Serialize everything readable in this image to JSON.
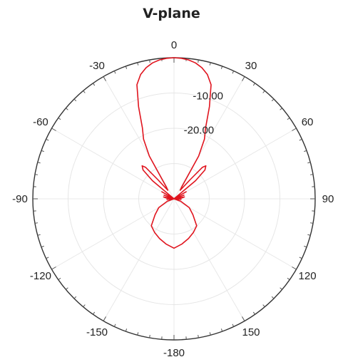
{
  "chart_data": {
    "type": "line",
    "projection": "polar",
    "title": "V-plane",
    "theta_zero": "top",
    "theta_direction": "clockwise",
    "angle_ticks": [
      0,
      30,
      60,
      90,
      120,
      150,
      -180,
      -150,
      -120,
      -90,
      -60,
      -30
    ],
    "angle_tick_labels": [
      "0",
      "30",
      "60",
      "90",
      "120",
      "150",
      "-180",
      "-150",
      "-120",
      "-90",
      "-60",
      "-30"
    ],
    "r_range_db": [
      -40,
      0
    ],
    "ring_levels_db": [
      -10,
      -20,
      -30
    ],
    "ring_labels": [
      "-10.00",
      "-20.00"
    ],
    "grid": true,
    "series": [
      {
        "color": "#e0141e",
        "theta_deg": [
          -180,
          -170,
          -160,
          -150,
          -140,
          -130,
          -120,
          -110,
          -100,
          -95,
          -90,
          -85,
          -80,
          -75,
          -70,
          -65,
          -60,
          -55,
          -50,
          -47,
          -44,
          -42,
          -40,
          -36,
          -33,
          -30,
          -27,
          -24,
          -21,
          -18,
          -15,
          -12,
          -9,
          -6,
          -3,
          0,
          3,
          6,
          9,
          12,
          15,
          18,
          21,
          24,
          27,
          30,
          33,
          36,
          40,
          42,
          44,
          47,
          50,
          55,
          60,
          65,
          70,
          75,
          80,
          85,
          90,
          95,
          100,
          110,
          120,
          130,
          140,
          150,
          160,
          170,
          180
        ],
        "r_db": [
          -26,
          -27,
          -28,
          -29,
          -30,
          -33,
          -35,
          -38,
          -40,
          -38,
          -40,
          -38,
          -37,
          -40,
          -37,
          -40,
          -36,
          -40,
          -32,
          -28,
          -27,
          -28,
          -33,
          -37,
          -36,
          -26,
          -21,
          -18,
          -12,
          -6,
          -3.5,
          -2,
          -1,
          -0.4,
          -0.1,
          0,
          -0.1,
          -0.4,
          -1,
          -2,
          -3.5,
          -6,
          -12,
          -18,
          -21,
          -26,
          -36,
          -37,
          -33,
          -28,
          -27,
          -28,
          -32,
          -40,
          -36,
          -40,
          -37,
          -40,
          -37,
          -38,
          -40,
          -38,
          -40,
          -38,
          -35,
          -33,
          -30,
          -29,
          -28,
          -27,
          -26
        ]
      }
    ]
  }
}
